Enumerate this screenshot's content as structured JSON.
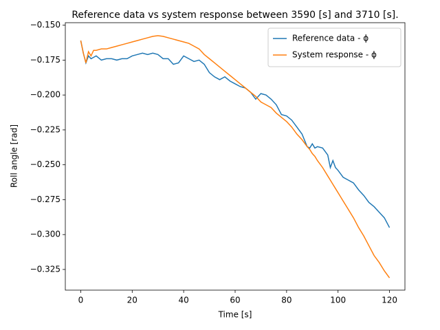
{
  "chart_data": {
    "type": "line",
    "title": "Reference data vs system response between 3590 [s] and 3710 [s].",
    "x_label": "Time [s]",
    "y_label": "Roll angle [rad]",
    "x": [
      0,
      1,
      2,
      3,
      4,
      5,
      6,
      8,
      10,
      12,
      14,
      16,
      18,
      20,
      22,
      24,
      26,
      28,
      30,
      32,
      34,
      36,
      38,
      40,
      42,
      44,
      46,
      48,
      50,
      52,
      54,
      56,
      58,
      60,
      62,
      64,
      66,
      68,
      70,
      72,
      74,
      76,
      78,
      80,
      82,
      84,
      86,
      88,
      89,
      90,
      91,
      92,
      94,
      96,
      97,
      98,
      99,
      100,
      102,
      104,
      106,
      108,
      110,
      112,
      114,
      116,
      118,
      120
    ],
    "series": [
      {
        "name": "Reference data - ϕ",
        "color": "#1f77b4",
        "values": [
          -0.161,
          -0.17,
          -0.177,
          -0.172,
          -0.174,
          -0.173,
          -0.172,
          -0.175,
          -0.174,
          -0.174,
          -0.175,
          -0.174,
          -0.174,
          -0.172,
          -0.171,
          -0.17,
          -0.171,
          -0.17,
          -0.171,
          -0.174,
          -0.174,
          -0.178,
          -0.177,
          -0.172,
          -0.174,
          -0.176,
          -0.175,
          -0.178,
          -0.184,
          -0.187,
          -0.189,
          -0.187,
          -0.19,
          -0.192,
          -0.194,
          -0.195,
          -0.198,
          -0.203,
          -0.199,
          -0.2,
          -0.203,
          -0.207,
          -0.214,
          -0.215,
          -0.218,
          -0.223,
          -0.228,
          -0.237,
          -0.238,
          -0.235,
          -0.238,
          -0.237,
          -0.238,
          -0.243,
          -0.252,
          -0.247,
          -0.252,
          -0.254,
          -0.259,
          -0.261,
          -0.263,
          -0.268,
          -0.272,
          -0.277,
          -0.28,
          -0.284,
          -0.288,
          -0.295
        ]
      },
      {
        "name": "System response - ϕ",
        "color": "#ff7f0e",
        "values": [
          -0.161,
          -0.17,
          -0.177,
          -0.169,
          -0.172,
          -0.168,
          -0.168,
          -0.167,
          -0.167,
          -0.166,
          -0.165,
          -0.164,
          -0.163,
          -0.162,
          -0.161,
          -0.16,
          -0.159,
          -0.158,
          -0.1575,
          -0.158,
          -0.159,
          -0.16,
          -0.161,
          -0.162,
          -0.163,
          -0.165,
          -0.167,
          -0.171,
          -0.174,
          -0.177,
          -0.18,
          -0.183,
          -0.186,
          -0.189,
          -0.192,
          -0.195,
          -0.198,
          -0.201,
          -0.205,
          -0.207,
          -0.209,
          -0.213,
          -0.216,
          -0.219,
          -0.223,
          -0.228,
          -0.232,
          -0.237,
          -0.239,
          -0.242,
          -0.244,
          -0.247,
          -0.252,
          -0.258,
          -0.261,
          -0.264,
          -0.267,
          -0.27,
          -0.276,
          -0.282,
          -0.288,
          -0.295,
          -0.301,
          -0.308,
          -0.315,
          -0.32,
          -0.326,
          -0.331
        ]
      }
    ],
    "xlim": [
      -6,
      126
    ],
    "xticks": [
      0,
      20,
      40,
      60,
      80,
      100,
      120
    ],
    "ylim": [
      -0.3398,
      -0.1482
    ],
    "yticks": [
      {
        "value": -0.325,
        "label": "−0.325"
      },
      {
        "value": -0.3,
        "label": "−0.300"
      },
      {
        "value": -0.275,
        "label": "−0.275"
      },
      {
        "value": -0.25,
        "label": "−0.250"
      },
      {
        "value": -0.225,
        "label": "−0.225"
      },
      {
        "value": -0.2,
        "label": "−0.200"
      },
      {
        "value": -0.175,
        "label": "−0.175"
      },
      {
        "value": -0.15,
        "label": "−0.150"
      }
    ],
    "grid": false,
    "legend": "upper right"
  }
}
